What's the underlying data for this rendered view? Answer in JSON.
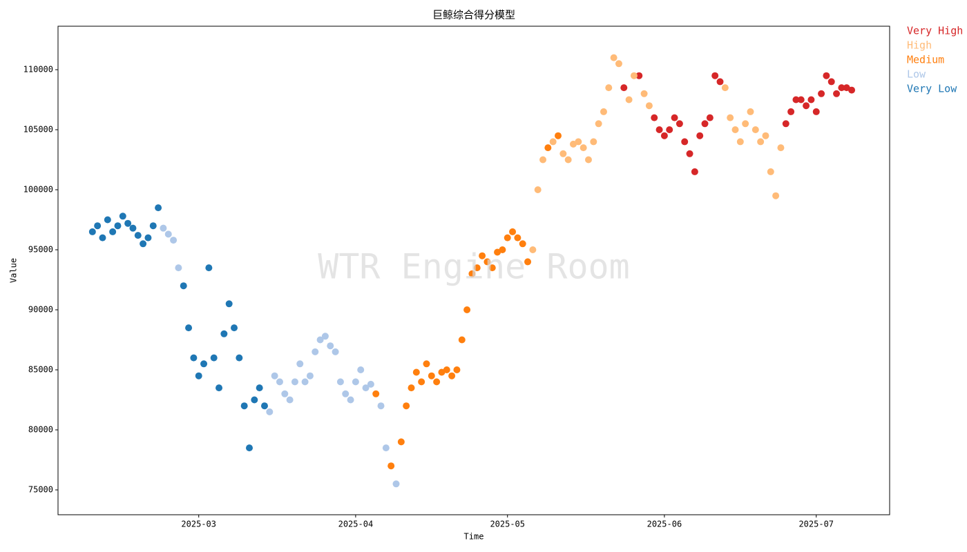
{
  "chart_data": {
    "type": "scatter",
    "title": "巨鲸综合得分模型",
    "x_label": "Time",
    "y_label": "Value",
    "watermark": "WTR Engine Room",
    "legend_loc": "outside upper right",
    "xlim": [
      20120.2,
      20284.5
    ],
    "ylim": [
      72931,
      113621
    ],
    "xticks": [
      {
        "value": 20148,
        "label": "2025-03"
      },
      {
        "value": 20179,
        "label": "2025-04"
      },
      {
        "value": 20209,
        "label": "2025-05"
      },
      {
        "value": 20240,
        "label": "2025-06"
      },
      {
        "value": 20270,
        "label": "2025-07"
      }
    ],
    "yticks": [
      75000,
      80000,
      85000,
      90000,
      95000,
      100000,
      105000,
      110000
    ],
    "series": [
      {
        "name": "Very High",
        "color": "#d62728",
        "x": [
          20232,
          20235,
          20238,
          20239,
          20240,
          20241,
          20242,
          20243,
          20244,
          20245,
          20246,
          20247,
          20248,
          20249,
          20250,
          20251,
          20264,
          20265,
          20266,
          20267,
          20268,
          20269,
          20270,
          20271,
          20272,
          20273,
          20274,
          20275,
          20276,
          20277
        ],
        "values": [
          108500,
          109500,
          106000,
          105000,
          104500,
          105000,
          106000,
          105500,
          104000,
          103000,
          101500,
          104500,
          105500,
          106000,
          109500,
          109000,
          105500,
          106500,
          107500,
          107500,
          107000,
          107500,
          106500,
          108000,
          109500,
          109000,
          108000,
          108500,
          108500,
          108300
        ]
      },
      {
        "name": "High",
        "color": "#ffbb78",
        "x": [
          20214,
          20215,
          20216,
          20218,
          20220,
          20221,
          20222,
          20223,
          20224,
          20225,
          20226,
          20227,
          20228,
          20229,
          20230,
          20231,
          20233,
          20234,
          20236,
          20237,
          20252,
          20253,
          20254,
          20255,
          20256,
          20257,
          20258,
          20259,
          20260,
          20261,
          20262,
          20263
        ],
        "values": [
          95000,
          100000,
          102500,
          104000,
          103000,
          102500,
          103800,
          104000,
          103500,
          102500,
          104000,
          105500,
          106500,
          108500,
          111000,
          110500,
          107500,
          109500,
          108000,
          107000,
          108500,
          106000,
          105000,
          104000,
          105500,
          106500,
          105000,
          104000,
          104500,
          101500,
          99500,
          103500
        ]
      },
      {
        "name": "Medium",
        "color": "#ff7f0e",
        "x": [
          20183,
          20186,
          20188,
          20189,
          20190,
          20191,
          20192,
          20193,
          20194,
          20195,
          20196,
          20197,
          20198,
          20199,
          20200,
          20201,
          20202,
          20203,
          20204,
          20205,
          20206,
          20207,
          20208,
          20209,
          20210,
          20211,
          20212,
          20213,
          20217,
          20219
        ],
        "values": [
          83000,
          77000,
          79000,
          82000,
          83500,
          84800,
          84000,
          85500,
          84500,
          84000,
          84800,
          85000,
          84500,
          85000,
          87500,
          90000,
          93000,
          93500,
          94500,
          94000,
          93500,
          94800,
          95000,
          96000,
          96500,
          96000,
          95500,
          94000,
          103500,
          104500
        ]
      },
      {
        "name": "Low",
        "color": "#aec7e8",
        "x": [
          20141,
          20142,
          20143,
          20144,
          20162,
          20163,
          20164,
          20165,
          20166,
          20167,
          20168,
          20169,
          20170,
          20171,
          20172,
          20173,
          20174,
          20175,
          20176,
          20177,
          20178,
          20179,
          20180,
          20181,
          20182,
          20184,
          20185,
          20187
        ],
        "values": [
          96800,
          96300,
          95800,
          93500,
          81500,
          84500,
          84000,
          83000,
          82500,
          84000,
          85500,
          84000,
          84500,
          86500,
          87500,
          87800,
          87000,
          86500,
          84000,
          83000,
          82500,
          84000,
          85000,
          83500,
          83800,
          82000,
          78500,
          75500
        ]
      },
      {
        "name": "Very Low",
        "color": "#1f77b4",
        "x": [
          20127,
          20128,
          20129,
          20130,
          20131,
          20132,
          20133,
          20134,
          20135,
          20136,
          20137,
          20138,
          20139,
          20140,
          20145,
          20146,
          20147,
          20148,
          20149,
          20150,
          20151,
          20152,
          20153,
          20154,
          20155,
          20156,
          20157,
          20158,
          20159,
          20160,
          20161
        ],
        "values": [
          96500,
          97000,
          96000,
          97500,
          96500,
          97000,
          97800,
          97200,
          96800,
          96200,
          95500,
          96000,
          97000,
          98500,
          92000,
          88500,
          86000,
          84500,
          85500,
          93500,
          86000,
          83500,
          88000,
          90500,
          88500,
          86000,
          82000,
          78500,
          82500,
          83500,
          82000
        ]
      }
    ]
  }
}
